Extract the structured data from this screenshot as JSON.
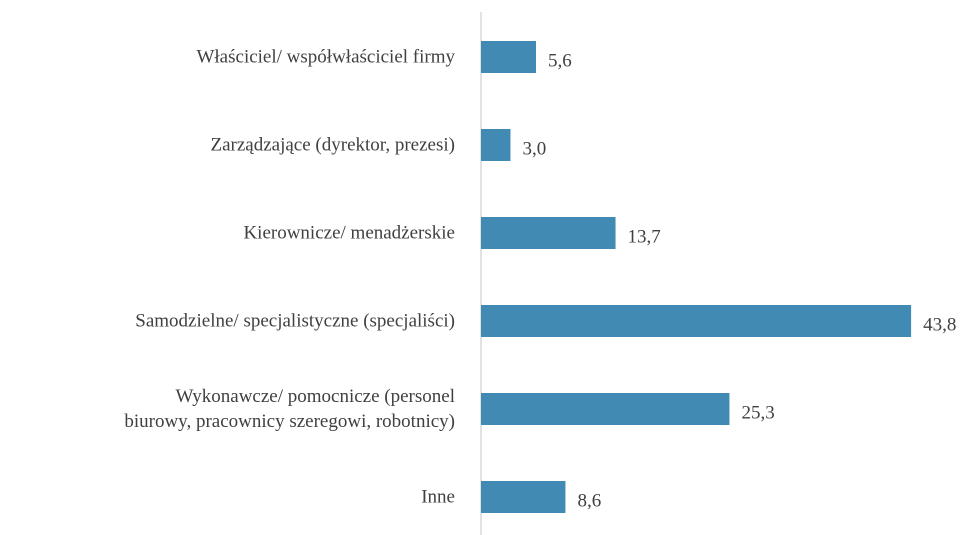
{
  "chart_data": {
    "type": "bar",
    "orientation": "horizontal",
    "categories": [
      "Właściciel/ współwłaściciel firmy",
      "Zarządzające (dyrektor, prezesi)",
      "Kierownicze/ menadżerskie",
      "Samodzielne/ specjalistyczne (specjaliści)",
      "Wykonawcze/ pomocnicze (personel\nbiurowy, pracownicy szeregowi, robotnicy)",
      "Inne"
    ],
    "values": [
      5.6,
      3.0,
      13.7,
      43.8,
      25.3,
      8.6
    ],
    "value_labels": [
      "5,6",
      "3,0",
      "13,7",
      "43,8",
      "25,3",
      "8,6"
    ],
    "color": "#418ab3",
    "xlim": [
      0,
      50
    ]
  }
}
